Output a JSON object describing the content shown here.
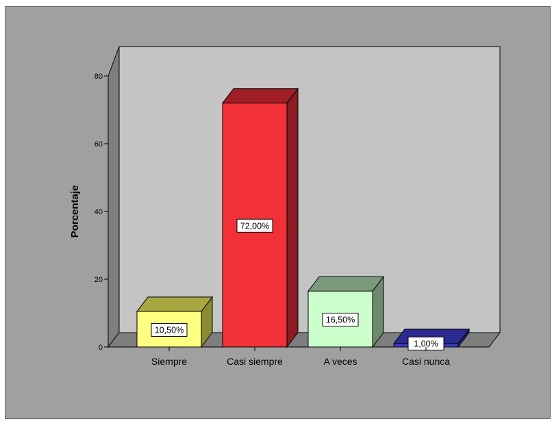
{
  "chart_data": {
    "type": "bar",
    "style": "3d",
    "categories": [
      "Siempre",
      "Casi siempre",
      "A veces",
      "Casi nunca"
    ],
    "values": [
      10.5,
      72.0,
      16.5,
      1.0
    ],
    "data_labels": [
      "10,50%",
      "72,00%",
      "16,50%",
      "1,00%"
    ],
    "ylabel": "Porcentaje",
    "ylim": [
      0,
      80
    ],
    "yticks": [
      0,
      20,
      40,
      60,
      80
    ],
    "ytick_labels": [
      "0",
      "20",
      "40",
      "60",
      "80"
    ],
    "grid": false,
    "legend": "none",
    "colors": {
      "background": "#a0a0a0",
      "wall": "#c4c4c4",
      "floor": "#7e7e7e",
      "bars": [
        {
          "front": "#ffff80",
          "top": "#a8a840",
          "side": "#8a8a30"
        },
        {
          "front": "#f23038",
          "top": "#a01e24",
          "side": "#8a1c22"
        },
        {
          "front": "#ccffcc",
          "top": "#7a9a7a",
          "side": "#6e8a6e"
        },
        {
          "front": "#3c3cc8",
          "top": "#2a2a90",
          "side": "#222280"
        }
      ]
    }
  }
}
